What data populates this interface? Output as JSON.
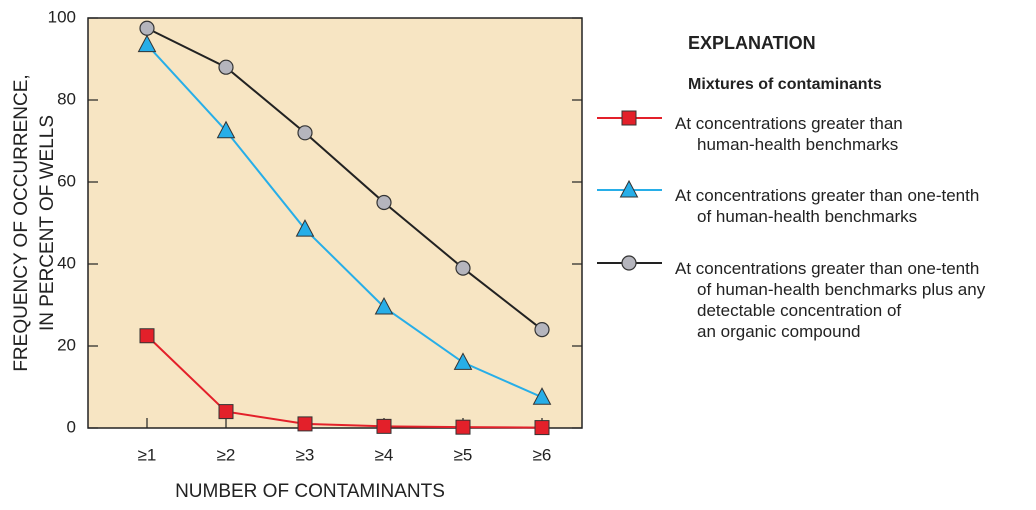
{
  "chart_data": {
    "type": "line",
    "xlabel": "NUMBER OF CONTAMINANTS",
    "ylabel": [
      "FREQUENCY OF OCCURRENCE,",
      "IN PERCENT OF WELLS"
    ],
    "legend_title": "EXPLANATION",
    "legend_subtitle": "Mixtures of contaminants",
    "categories": [
      "≥1",
      "≥2",
      "≥3",
      "≥4",
      "≥5",
      "≥6"
    ],
    "ylim": [
      0,
      100
    ],
    "yticks": [
      0,
      20,
      40,
      60,
      80,
      100
    ],
    "series": [
      {
        "name": "At concentrations greater than\nhuman-health benchmarks",
        "color": "#e3202a",
        "marker": "square",
        "values": [
          22.5,
          4,
          1,
          0.4,
          0.2,
          0.1
        ]
      },
      {
        "name": "At concentrations greater than one-tenth\nof human-health benchmarks",
        "color": "#27aee8",
        "marker": "triangle",
        "values": [
          93.5,
          72.5,
          48.5,
          29.5,
          16,
          7.5
        ]
      },
      {
        "name": "At concentrations greater than one-tenth\nof human-health benchmarks plus any\ndetectable concentration of\nan organic compound",
        "color": "#222222",
        "marker": "circle",
        "values": [
          97.5,
          88,
          72,
          55,
          39,
          24
        ]
      }
    ]
  }
}
